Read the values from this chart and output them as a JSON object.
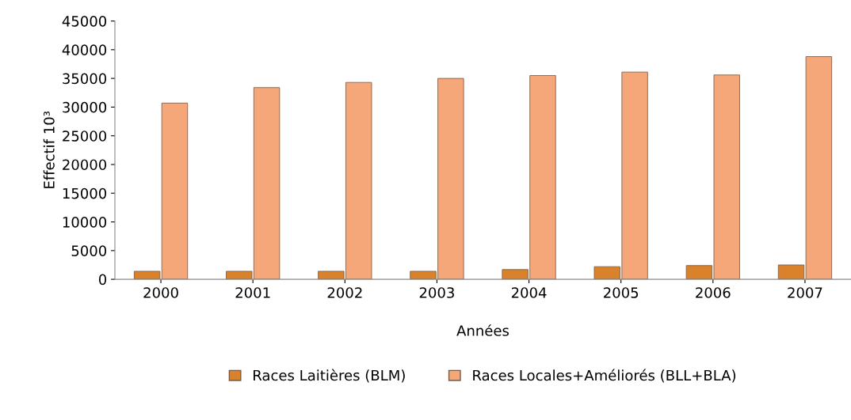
{
  "chart_data": {
    "type": "bar",
    "xlabel": "Années",
    "ylabel": "Effectif 10³",
    "categories": [
      "2000",
      "2001",
      "2002",
      "2003",
      "2004",
      "2005",
      "2006",
      "2007"
    ],
    "series": [
      {
        "name": "Races Laitières (BLM)",
        "color": "#d9822b",
        "values": [
          1400,
          1400,
          1400,
          1400,
          1700,
          2200,
          2400,
          2500
        ]
      },
      {
        "name": "Races Locales+Améliorés (BLL+BLA)",
        "color": "#f5a77a",
        "values": [
          30700,
          33400,
          34300,
          35000,
          35500,
          36100,
          35600,
          38800
        ]
      }
    ],
    "ylim": [
      0,
      45000
    ],
    "yticks": [
      0,
      5000,
      10000,
      15000,
      20000,
      25000,
      30000,
      35000,
      40000,
      45000
    ],
    "grid": false,
    "legend": "bottom"
  }
}
